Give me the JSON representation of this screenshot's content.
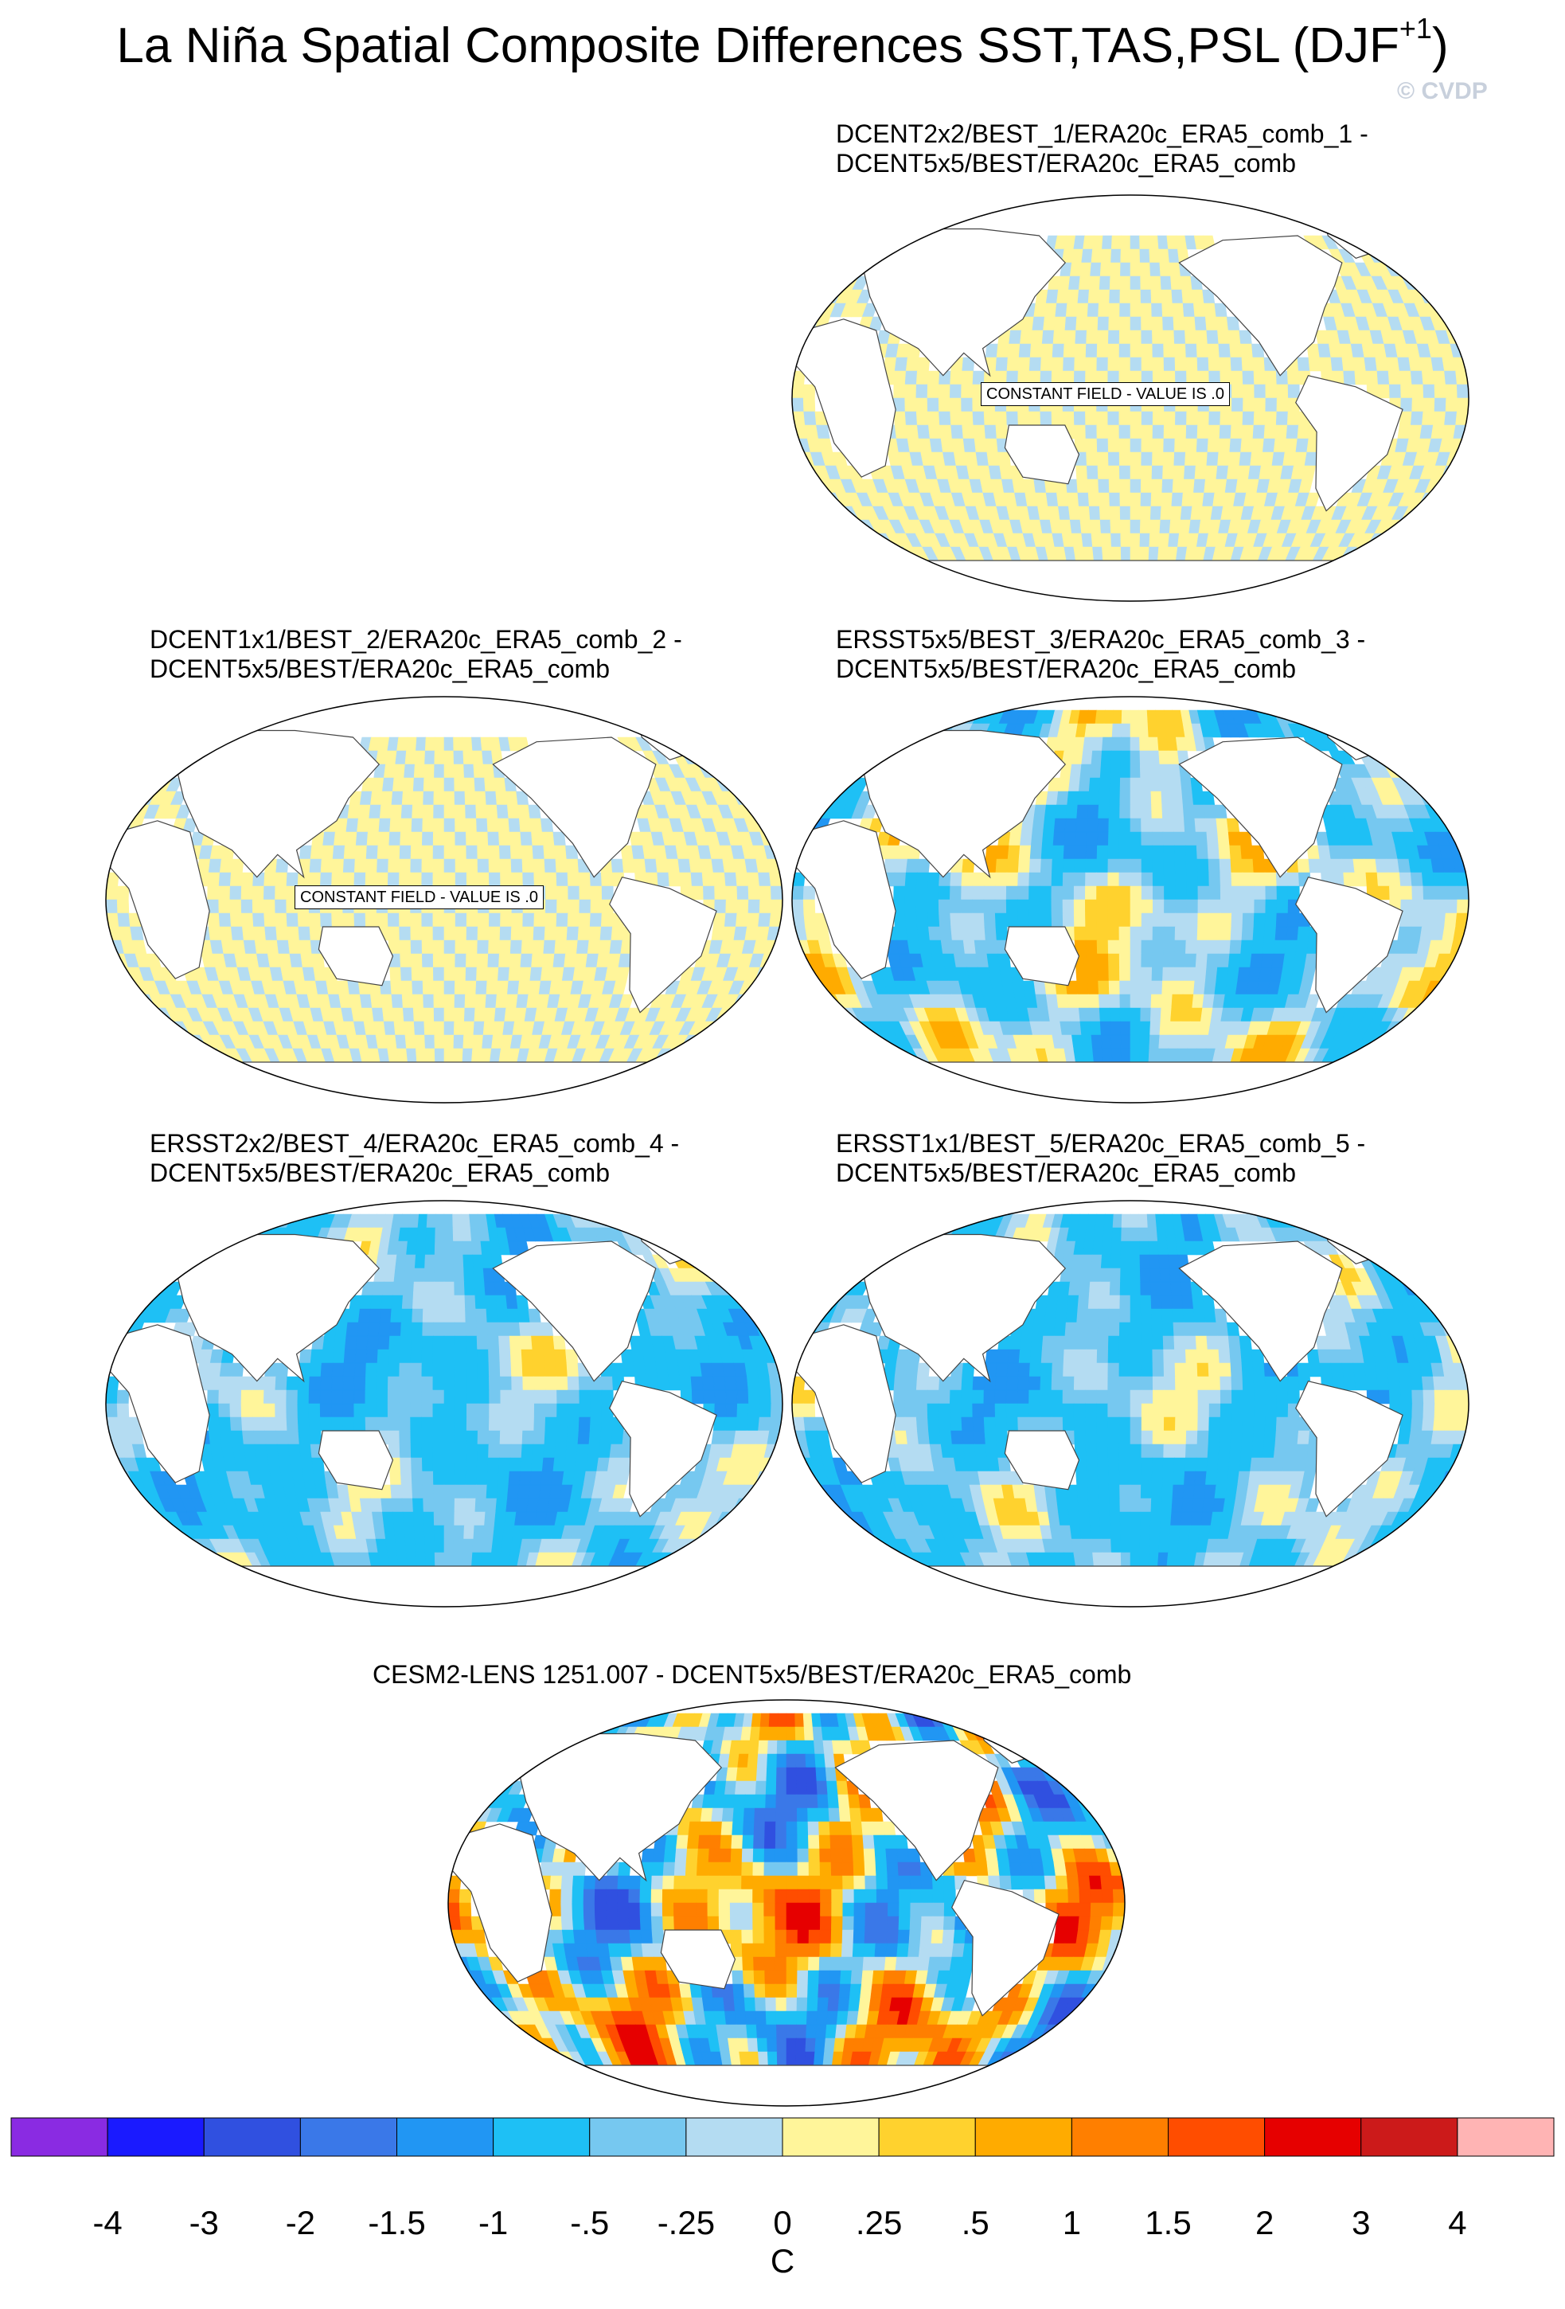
{
  "page": {
    "title": "La Niña Spatial Composite Differences SST,TAS,PSL (DJF",
    "title_sup": "+1",
    "title_close": ")",
    "watermark": "© CVDP"
  },
  "chart_data": {
    "type": "heatmap",
    "palette": [
      "#8a2be2",
      "#1a1aff",
      "#3050e0",
      "#3a78e8",
      "#2196f3",
      "#1ec0f5",
      "#76c8f0",
      "#b4dcf2",
      "#fff59a",
      "#ffd22e",
      "#ffab00",
      "#ff7f00",
      "#ff4d00",
      "#e60000",
      "#cc1a1a",
      "#ffb4b4"
    ],
    "colorbar": {
      "levels": [
        "-4",
        "-3",
        "-2",
        "-1.5",
        "-1",
        "-.5",
        "-.25",
        "0",
        ".25",
        ".5",
        "1",
        "1.5",
        "2",
        "3",
        "4"
      ],
      "units": "C"
    },
    "panels": [
      {
        "title_line1": "DCENT2x2/BEST_1/ERA20c_ERA5_comb_1 -",
        "title_line2": "DCENT5x5/BEST/ERA20c_ERA5_comb",
        "field": "constant",
        "message": "CONSTANT FIELD - VALUE IS .0"
      },
      {
        "title_line1": "DCENT1x1/BEST_2/ERA20c_ERA5_comb_2 -",
        "title_line2": "DCENT5x5/BEST/ERA20c_ERA5_comb",
        "field": "constant",
        "message": "CONSTANT FIELD - VALUE IS .0"
      },
      {
        "title_line1": "ERSST5x5/BEST_3/ERA20c_ERA5_comb_3 -",
        "title_line2": "DCENT5x5/BEST/ERA20c_ERA5_comb",
        "field": "difference",
        "value_range": [
          -1.5,
          1
        ]
      },
      {
        "title_line1": "ERSST2x2/BEST_4/ERA20c_ERA5_comb_4 -",
        "title_line2": "DCENT5x5/BEST/ERA20c_ERA5_comb",
        "field": "difference",
        "value_range": [
          -1.5,
          0.5
        ]
      },
      {
        "title_line1": "ERSST1x1/BEST_5/ERA20c_ERA5_comb_5 -",
        "title_line2": "DCENT5x5/BEST/ERA20c_ERA5_comb",
        "field": "difference",
        "value_range": [
          -1.5,
          0.5
        ]
      },
      {
        "title_line1": "CESM2-LENS 1251.007 - DCENT5x5/BEST/ERA20c_ERA5_comb",
        "title_line2": "",
        "field": "difference",
        "value_range": [
          -3,
          3
        ]
      }
    ]
  }
}
